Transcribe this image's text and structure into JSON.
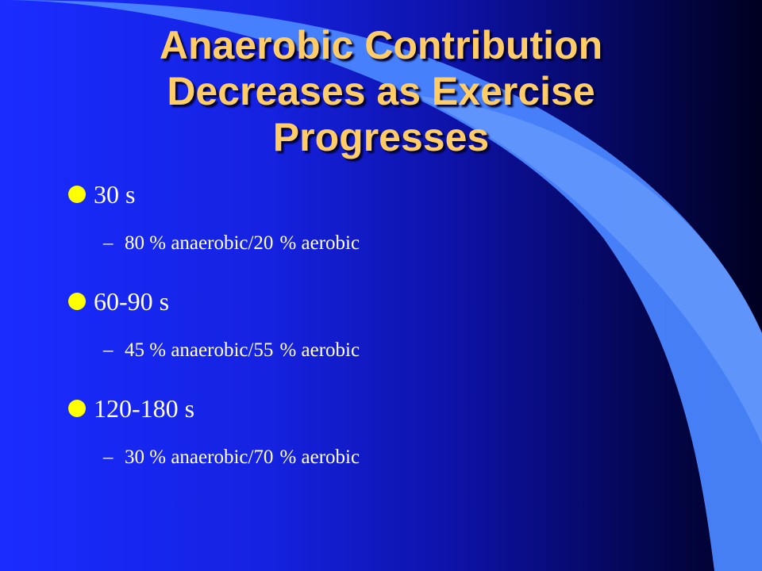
{
  "slide": {
    "title_lines": [
      "Anaerobic Contribution",
      "Decreases as Exercise",
      "Progresses"
    ],
    "bullets": [
      {
        "label": "30 s",
        "sub": {
          "dash": "–",
          "part1": "80 % anaerobic/20",
          "part2": "% aerobic"
        }
      },
      {
        "label": "60-90 s",
        "sub": {
          "dash": "–",
          "part1": "45 % anaerobic/55",
          "part2": "% aerobic"
        }
      },
      {
        "label": "120-180 s",
        "sub": {
          "dash": "–",
          "part1": "30 % anaerobic/70",
          "part2": "% aerobic"
        }
      }
    ]
  },
  "colors": {
    "title": "#ffcc66",
    "bullet_dot": "#ffff00",
    "text": "#ffffff",
    "background": "#1522e0",
    "swoosh": "#4a86ff"
  }
}
